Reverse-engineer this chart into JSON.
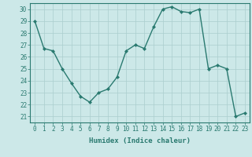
{
  "x": [
    0,
    1,
    2,
    3,
    4,
    5,
    6,
    7,
    8,
    9,
    10,
    11,
    12,
    13,
    14,
    15,
    16,
    17,
    18,
    19,
    20,
    21,
    22,
    23
  ],
  "y": [
    29,
    26.7,
    26.5,
    25,
    23.8,
    22.7,
    22.2,
    23.0,
    23.3,
    24.3,
    26.5,
    27.0,
    26.7,
    28.5,
    30.0,
    30.2,
    29.8,
    29.7,
    30.0,
    25.0,
    25.3,
    25.0,
    21.0,
    21.3
  ],
  "line_color": "#2a7a70",
  "marker": "D",
  "marker_size": 2,
  "line_width": 1.0,
  "bg_color": "#cce8e8",
  "grid_color": "#aacece",
  "xlabel": "Humidex (Indice chaleur)",
  "ylim": [
    20.5,
    30.5
  ],
  "xlim": [
    -0.5,
    23.5
  ],
  "yticks": [
    21,
    22,
    23,
    24,
    25,
    26,
    27,
    28,
    29,
    30
  ],
  "xticks": [
    0,
    1,
    2,
    3,
    4,
    5,
    6,
    7,
    8,
    9,
    10,
    11,
    12,
    13,
    14,
    15,
    16,
    17,
    18,
    19,
    20,
    21,
    22,
    23
  ],
  "tick_label_fontsize": 5.5,
  "xlabel_fontsize": 6.5
}
